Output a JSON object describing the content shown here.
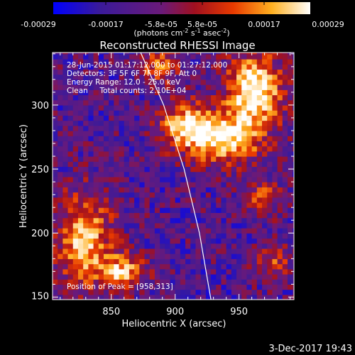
{
  "colorbar": {
    "ticks": [
      "-0.00029",
      "-0.00017",
      "-5.8e-05",
      "5.8e-05",
      "0.00017",
      "0.00029"
    ],
    "units_prefix": "(photons cm",
    "units_exp1": "-2",
    "units_mid": " s",
    "units_exp2": "-1",
    "units_mid2": " asec",
    "units_exp3": "-2",
    "units_suffix": ")"
  },
  "annotations": {
    "line1": "28-Jun-2015 01:17:12.000 to 01:27:12.000",
    "line2": "Detectors: 3F 5F 6F 7F 8F 9F, Att 0",
    "line3": "Energy Range: 12.0 - 25.0 keV",
    "line4": "Clean     Total counts: 2.10E+04",
    "peak": "Position of Peak = [958,313]"
  },
  "footer": {
    "date": "3-Dec-2017 19:43"
  },
  "chart_data": {
    "type": "heatmap",
    "title": "Reconstructed RHESSI Image",
    "xlabel": "Heliocentric X (arcsec)",
    "ylabel": "Heliocentric Y (arcsec)",
    "xlim": [
      804,
      993
    ],
    "ylim": [
      148,
      341
    ],
    "xticks": [
      850,
      900,
      950
    ],
    "yticks": [
      200,
      250,
      300
    ],
    "colorbar_range": [
      -0.00029,
      0.00029
    ],
    "peak": [
      958,
      313
    ],
    "limb_curve": [
      [
        873,
        341
      ],
      [
        891,
        300
      ],
      [
        907,
        250
      ],
      [
        919,
        200
      ],
      [
        928,
        148
      ]
    ],
    "bright_regions": [
      {
        "center": [
          960,
          310
        ],
        "sigma": [
          16,
          20
        ],
        "amp": 1.0
      },
      {
        "center": [
          935,
          272
        ],
        "sigma": [
          22,
          14
        ],
        "amp": 0.85
      },
      {
        "center": [
          905,
          283
        ],
        "sigma": [
          14,
          12
        ],
        "amp": 0.7
      },
      {
        "center": [
          827,
          192
        ],
        "sigma": [
          16,
          26
        ],
        "amp": 0.8
      },
      {
        "center": [
          858,
          168
        ],
        "sigma": [
          12,
          10
        ],
        "amp": 0.7
      },
      {
        "center": [
          885,
          328
        ],
        "sigma": [
          12,
          10
        ],
        "amp": 0.55
      },
      {
        "center": [
          965,
          225
        ],
        "sigma": [
          10,
          10
        ],
        "amp": 0.5
      },
      {
        "center": [
          975,
          175
        ],
        "sigma": [
          10,
          10
        ],
        "amp": 0.45
      }
    ]
  }
}
